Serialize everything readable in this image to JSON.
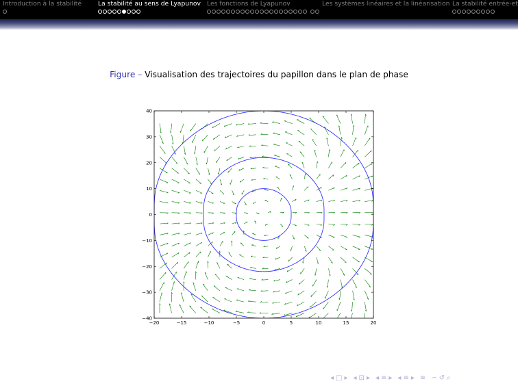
{
  "headline": {
    "sections": [
      {
        "title": "Introduction à la stabilité",
        "dots": [
          false
        ],
        "active": false
      },
      {
        "title": "La stabilité au sens de Lyapunov",
        "dots": [
          false,
          false,
          false,
          false,
          false,
          true,
          false,
          false,
          false
        ],
        "active": true
      },
      {
        "title": "Les fonctions de Lyapunov",
        "dots": [
          false,
          false,
          false,
          false,
          false,
          false,
          false,
          false,
          false,
          false,
          false,
          false,
          false,
          false,
          false,
          false,
          false,
          false,
          false,
          false,
          false,
          false,
          false
        ],
        "active": false
      },
      {
        "title": "Les systèmes linéaires et la linéarisation",
        "dots": [],
        "active": false
      },
      {
        "title": "La stabilité entrée-et",
        "dots": [
          false,
          false,
          false,
          false,
          false,
          false,
          false,
          false,
          false
        ],
        "active": false
      }
    ]
  },
  "figure": {
    "label": "Figure –",
    "caption": "Visualisation des trajectoires du papillon dans le plan de phase"
  },
  "chart_data": {
    "type": "phase-portrait",
    "title": "",
    "xlabel": "",
    "ylabel": "",
    "xlim": [
      -20,
      20
    ],
    "ylim": [
      -40,
      40
    ],
    "xticks": [
      -20,
      -15,
      -10,
      -5,
      0,
      5,
      10,
      15,
      20
    ],
    "yticks": [
      -40,
      -30,
      -20,
      -10,
      0,
      10,
      20,
      30,
      40
    ],
    "xtick_labels": [
      "−20",
      "−15",
      "−10",
      "−5",
      "0",
      "5",
      "10",
      "15",
      "20"
    ],
    "ytick_labels": [
      "−40",
      "−30",
      "−20",
      "−10",
      "0",
      "10",
      "20",
      "30",
      "40"
    ],
    "grid": false,
    "colors": {
      "trajectories": "#3333ff",
      "vector_field": "#008000"
    },
    "trajectories": [
      {
        "a": 5,
        "b": 10
      },
      {
        "a": 11,
        "b": 22
      },
      {
        "a": 20,
        "b": 40
      }
    ]
  },
  "beamer_nav": {
    "icons": [
      "◂",
      "□",
      "▸",
      "◂",
      "⊡",
      "▸",
      "◂",
      "≡",
      "▸",
      "◂",
      "≡",
      "▸",
      "≡",
      "∽",
      "↺",
      "⌕"
    ]
  }
}
